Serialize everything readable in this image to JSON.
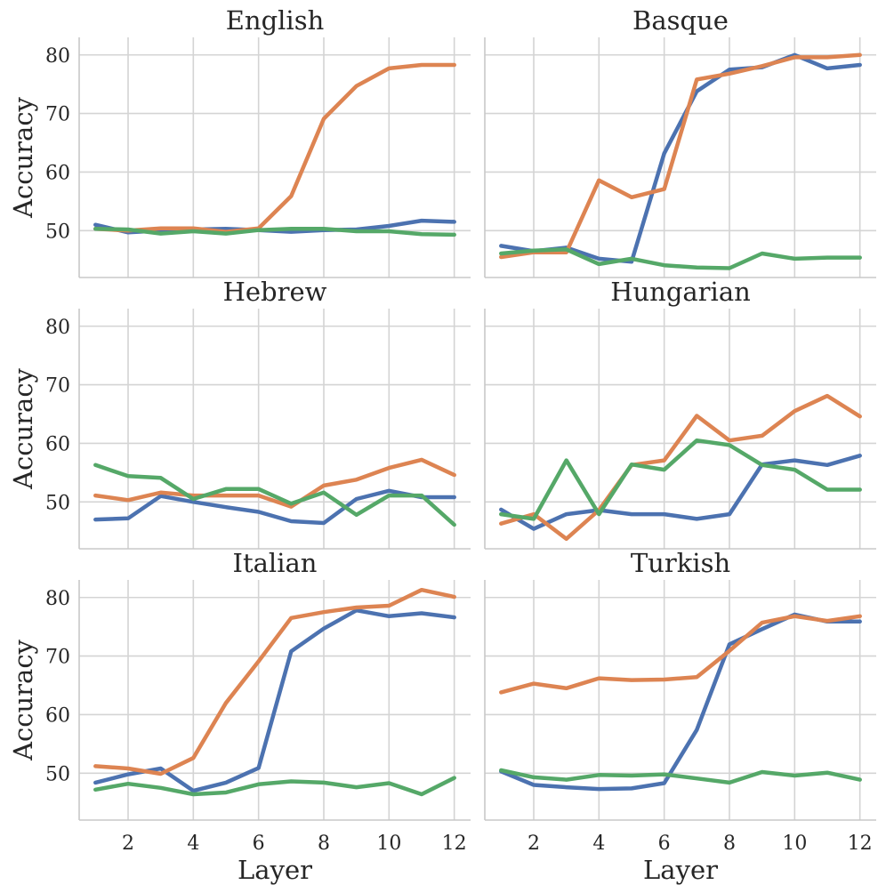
{
  "chart_data": [
    {
      "type": "line",
      "title": "English",
      "xlabel": "",
      "ylabel": "Accuracy",
      "xlim": [
        0.5,
        12.5
      ],
      "ylim": [
        42,
        83
      ],
      "grid": true,
      "x": [
        1,
        2,
        3,
        4,
        5,
        6,
        7,
        8,
        9,
        10,
        11,
        12
      ],
      "series": [
        {
          "name": "blue",
          "color": "#4c72b0",
          "values": [
            51.0,
            49.7,
            50.0,
            50.2,
            50.3,
            50.1,
            49.8,
            50.1,
            50.2,
            50.8,
            51.7,
            51.5
          ]
        },
        {
          "name": "orange",
          "color": "#dd8452",
          "values": [
            50.3,
            50.0,
            50.4,
            50.4,
            49.8,
            50.4,
            55.9,
            69.1,
            74.7,
            77.7,
            78.3,
            78.3
          ]
        },
        {
          "name": "green",
          "color": "#55a868",
          "values": [
            50.3,
            50.2,
            49.5,
            49.9,
            49.5,
            50.1,
            50.3,
            50.3,
            49.9,
            49.9,
            49.4,
            49.3
          ]
        }
      ]
    },
    {
      "type": "line",
      "title": "Basque",
      "xlabel": "",
      "ylabel": "",
      "xlim": [
        0.5,
        12.5
      ],
      "ylim": [
        42,
        83
      ],
      "grid": true,
      "x": [
        1,
        2,
        3,
        4,
        5,
        6,
        7,
        8,
        9,
        10,
        11,
        12
      ],
      "series": [
        {
          "name": "blue",
          "color": "#4c72b0",
          "values": [
            47.4,
            46.5,
            47.1,
            45.2,
            44.7,
            63.2,
            73.8,
            77.5,
            77.9,
            80.0,
            77.7,
            78.3
          ]
        },
        {
          "name": "orange",
          "color": "#dd8452",
          "values": [
            45.5,
            46.3,
            46.3,
            58.6,
            55.7,
            57.1,
            75.8,
            76.8,
            78.1,
            79.6,
            79.6,
            80.0
          ]
        },
        {
          "name": "green",
          "color": "#55a868",
          "values": [
            46.1,
            46.6,
            46.8,
            44.3,
            45.2,
            44.1,
            43.7,
            43.6,
            46.1,
            45.2,
            45.4,
            45.4
          ]
        }
      ]
    },
    {
      "type": "line",
      "title": "Hebrew",
      "xlabel": "",
      "ylabel": "Accuracy",
      "xlim": [
        0.5,
        12.5
      ],
      "ylim": [
        42,
        83
      ],
      "grid": true,
      "x": [
        1,
        2,
        3,
        4,
        5,
        6,
        7,
        8,
        9,
        10,
        11,
        12
      ],
      "series": [
        {
          "name": "blue",
          "color": "#4c72b0",
          "values": [
            47.0,
            47.2,
            51.0,
            50.0,
            49.1,
            48.3,
            46.7,
            46.4,
            50.5,
            51.9,
            50.8,
            50.8
          ]
        },
        {
          "name": "orange",
          "color": "#dd8452",
          "values": [
            51.1,
            50.3,
            51.6,
            51.1,
            51.1,
            51.1,
            49.2,
            52.8,
            53.8,
            55.8,
            57.2,
            54.6
          ]
        },
        {
          "name": "green",
          "color": "#55a868",
          "values": [
            56.3,
            54.4,
            54.1,
            50.5,
            52.2,
            52.2,
            49.7,
            51.6,
            47.8,
            51.1,
            51.1,
            46.1
          ]
        }
      ]
    },
    {
      "type": "line",
      "title": "Hungarian",
      "xlabel": "",
      "ylabel": "",
      "xlim": [
        0.5,
        12.5
      ],
      "ylim": [
        42,
        83
      ],
      "grid": true,
      "x": [
        1,
        2,
        3,
        4,
        5,
        6,
        7,
        8,
        9,
        10,
        11,
        12
      ],
      "series": [
        {
          "name": "blue",
          "color": "#4c72b0",
          "values": [
            48.7,
            45.4,
            47.9,
            48.6,
            47.9,
            47.9,
            47.1,
            47.9,
            56.4,
            57.1,
            56.3,
            57.9
          ]
        },
        {
          "name": "orange",
          "color": "#dd8452",
          "values": [
            46.3,
            47.9,
            43.7,
            48.6,
            56.3,
            57.1,
            64.7,
            60.5,
            61.3,
            65.5,
            68.1,
            64.6
          ]
        },
        {
          "name": "green",
          "color": "#55a868",
          "values": [
            47.9,
            47.1,
            57.1,
            47.9,
            56.4,
            55.5,
            60.5,
            59.7,
            56.3,
            55.5,
            52.1,
            52.1
          ]
        }
      ]
    },
    {
      "type": "line",
      "title": "Italian",
      "xlabel": "Layer",
      "ylabel": "Accuracy",
      "xlim": [
        0.5,
        12.5
      ],
      "ylim": [
        42,
        83
      ],
      "grid": true,
      "x": [
        1,
        2,
        3,
        4,
        5,
        6,
        7,
        8,
        9,
        10,
        11,
        12
      ],
      "series": [
        {
          "name": "blue",
          "color": "#4c72b0",
          "values": [
            48.4,
            49.8,
            50.8,
            47.0,
            48.4,
            50.9,
            70.8,
            74.7,
            77.8,
            76.8,
            77.3,
            76.6
          ]
        },
        {
          "name": "orange",
          "color": "#dd8452",
          "values": [
            51.2,
            50.8,
            49.9,
            52.6,
            62.0,
            69.1,
            76.5,
            77.5,
            78.3,
            78.6,
            81.3,
            80.1
          ]
        },
        {
          "name": "green",
          "color": "#55a868",
          "values": [
            47.2,
            48.2,
            47.5,
            46.4,
            46.7,
            48.1,
            48.6,
            48.4,
            47.6,
            48.3,
            46.4,
            49.2
          ]
        }
      ]
    },
    {
      "type": "line",
      "title": "Turkish",
      "xlabel": "Layer",
      "ylabel": "",
      "xlim": [
        0.5,
        12.5
      ],
      "ylim": [
        42,
        83
      ],
      "grid": true,
      "x": [
        1,
        2,
        3,
        4,
        5,
        6,
        7,
        8,
        9,
        10,
        11,
        12
      ],
      "series": [
        {
          "name": "blue",
          "color": "#4c72b0",
          "values": [
            50.3,
            48.0,
            47.6,
            47.3,
            47.4,
            48.3,
            57.4,
            72.0,
            74.6,
            77.1,
            75.9,
            75.9
          ]
        },
        {
          "name": "orange",
          "color": "#dd8452",
          "values": [
            63.8,
            65.3,
            64.5,
            66.2,
            65.9,
            66.0,
            66.4,
            70.9,
            75.7,
            76.8,
            76.0,
            76.8
          ]
        },
        {
          "name": "green",
          "color": "#55a868",
          "values": [
            50.5,
            49.3,
            48.9,
            49.7,
            49.6,
            49.8,
            49.1,
            48.4,
            50.2,
            49.6,
            50.1,
            48.9
          ]
        }
      ]
    }
  ],
  "axes": {
    "x_ticks": [
      2,
      4,
      6,
      8,
      10,
      12
    ],
    "y_ticks": [
      50,
      60,
      70,
      80
    ]
  }
}
